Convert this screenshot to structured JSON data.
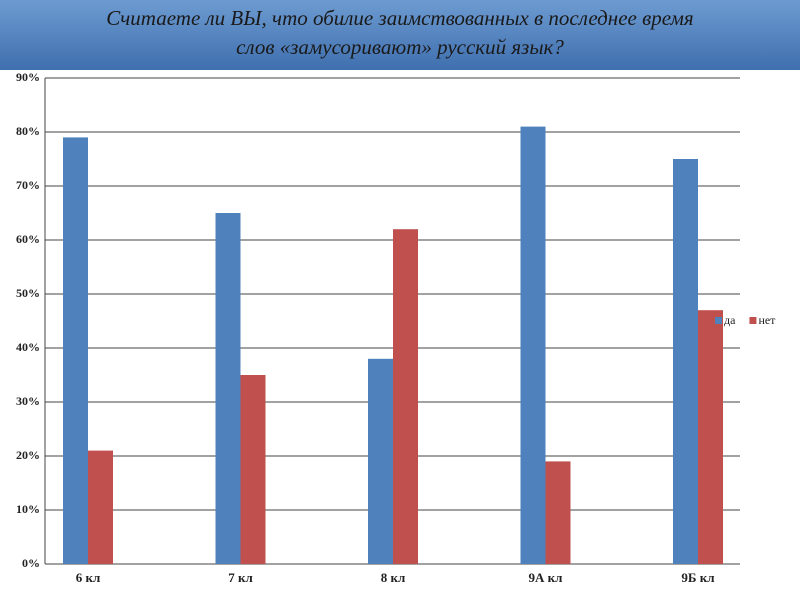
{
  "chart_data": {
    "type": "bar",
    "title": "Считаете ли ВЫ, что обилие заимствованных в последнее время слов «замусоривают» русский язык?",
    "categories": [
      "6 кл",
      "7 кл",
      "8 кл",
      "9А кл",
      "9Б кл"
    ],
    "series": [
      {
        "name": "да",
        "color": "#4f81bd",
        "values": [
          79,
          65,
          38,
          81,
          75
        ]
      },
      {
        "name": "нет",
        "color": "#c0504d",
        "values": [
          21,
          35,
          62,
          19,
          47
        ]
      }
    ],
    "ylim": [
      0,
      90
    ],
    "yticks": [
      {
        "value": 0,
        "label": "0%"
      },
      {
        "value": 10,
        "label": "10%"
      },
      {
        "value": 20,
        "label": "20%"
      },
      {
        "value": 30,
        "label": "30%"
      },
      {
        "value": 40,
        "label": "40%"
      },
      {
        "value": 50,
        "label": "50%"
      },
      {
        "value": 60,
        "label": "60%"
      },
      {
        "value": 70,
        "label": "70%"
      },
      {
        "value": 80,
        "label": "80%"
      },
      {
        "value": 90,
        "label": "90%"
      }
    ],
    "grid": true,
    "legend": "right"
  }
}
